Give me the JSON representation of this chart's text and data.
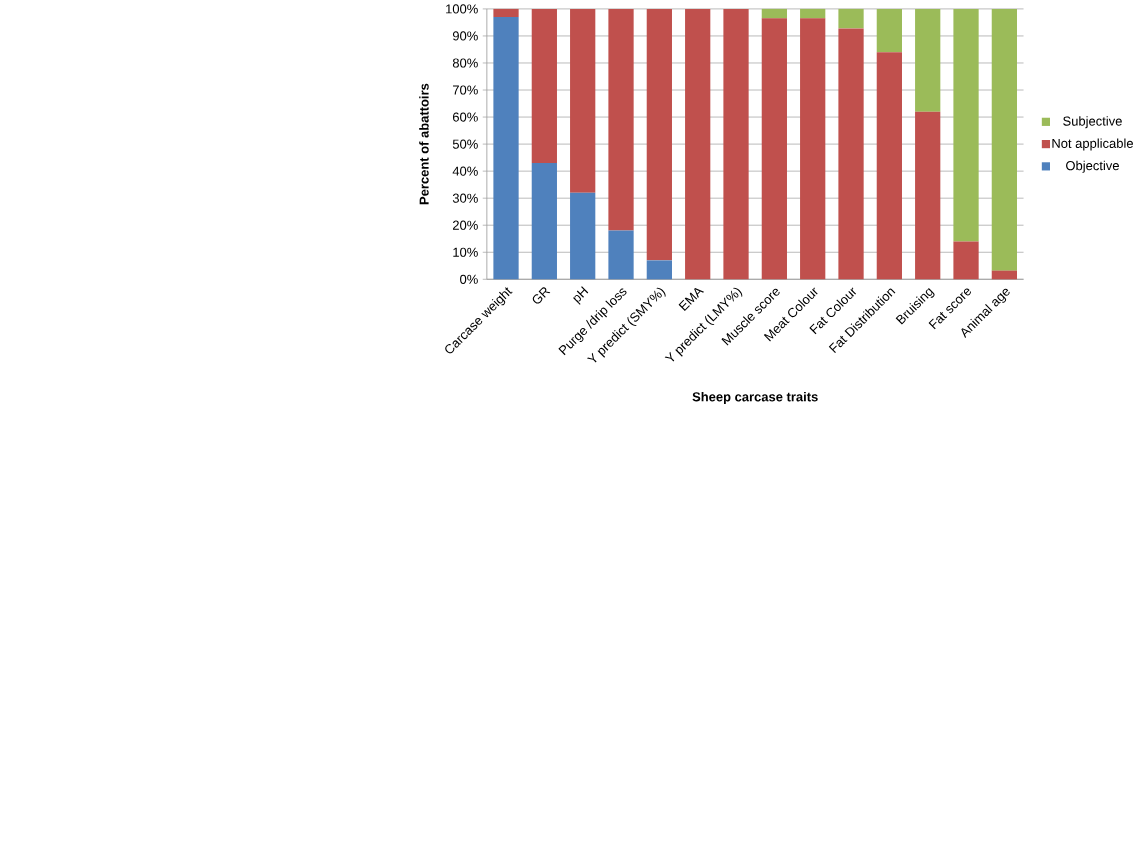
{
  "chart_data": {
    "type": "bar",
    "stacked": true,
    "xlabel": "Sheep carcase traits",
    "ylabel": "Percent of abattoirs",
    "categories": [
      "Carcase weight",
      "GR",
      "pH",
      "Purge /drip loss",
      "Y predict (SMY%)",
      "EMA",
      "Y predict (LMY%)",
      "Muscle score",
      "Meat Colour",
      "Fat Colour",
      "Fat Distribution",
      "Bruising",
      "Fat score",
      "Animal age"
    ],
    "series": [
      {
        "name": "Objective",
        "color": "#4f81bd",
        "values": [
          97,
          43,
          32,
          18,
          7,
          0,
          0,
          0,
          0,
          0,
          0,
          0,
          0,
          0
        ]
      },
      {
        "name": "Not applicable",
        "color": "#c0504d",
        "values": [
          3,
          57,
          68,
          82,
          93,
          100,
          100,
          96.5,
          96.5,
          92.8,
          84,
          62,
          14,
          3.2
        ]
      },
      {
        "name": "Subjective",
        "color": "#9bbb59",
        "values": [
          0,
          0,
          0,
          0,
          0,
          0,
          0,
          3.5,
          3.5,
          7.2,
          16,
          38,
          86,
          96.8
        ]
      }
    ],
    "ylim": [
      0,
      100
    ],
    "yticks": [
      {
        "value": 0,
        "label": "0%"
      },
      {
        "value": 10,
        "label": "10%"
      },
      {
        "value": 20,
        "label": "20%"
      },
      {
        "value": 30,
        "label": "30%"
      },
      {
        "value": 40,
        "label": "40%"
      },
      {
        "value": 50,
        "label": "50%"
      },
      {
        "value": 60,
        "label": "60%"
      },
      {
        "value": 70,
        "label": "70%"
      },
      {
        "value": 80,
        "label": "80%"
      },
      {
        "value": 90,
        "label": "90%"
      },
      {
        "value": 100,
        "label": "100%"
      }
    ],
    "grid": "y",
    "legend": "right"
  }
}
